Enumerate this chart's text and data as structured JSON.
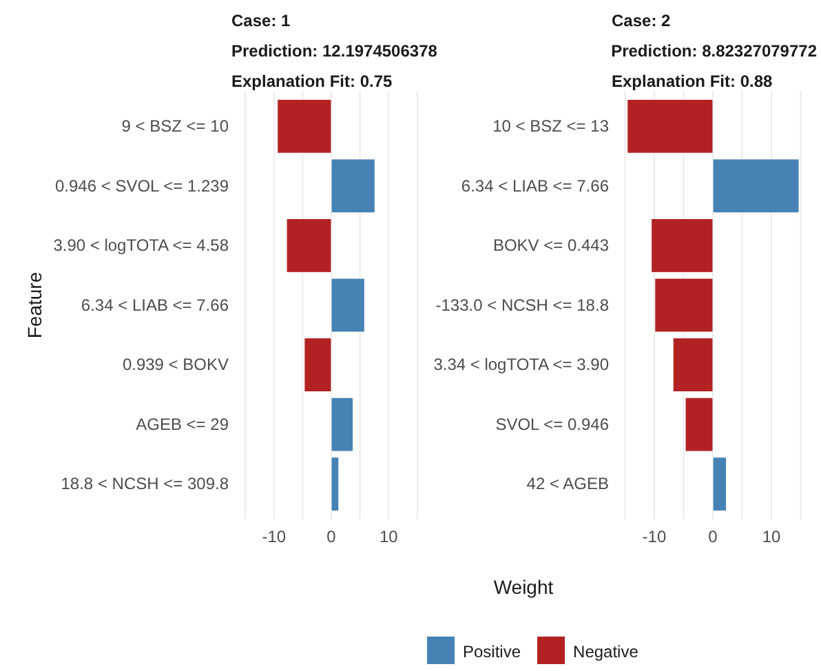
{
  "chart_data": [
    {
      "type": "bar",
      "orientation": "horizontal",
      "title": "Case: 1",
      "subtitle": "Prediction: 12.1974506378",
      "annotations": [
        "Explanation Fit: 0.75"
      ],
      "ylabel": "Feature",
      "xlabel": "Weight",
      "categories": [
        "9 < BSZ <= 10",
        "0.946 < SVOL <= 1.239",
        "3.90 < logTOTA <= 4.58",
        "6.34 < LIAB <= 7.66",
        "0.939 < BOKV",
        "AGEB <= 29",
        "18.8 < NCSH <= 309.8"
      ],
      "series": [
        {
          "name": "Positive",
          "color": "#4682b4",
          "values": [
            null,
            7.6,
            null,
            5.8,
            null,
            3.8,
            1.3
          ]
        },
        {
          "name": "Negative",
          "color": "#b22222",
          "values": [
            -9.4,
            null,
            -7.8,
            null,
            -4.7,
            null,
            null
          ]
        }
      ],
      "xlim": [
        -15.5,
        15.5
      ],
      "xticks": [
        {
          "value": -15,
          "label": null
        },
        -10,
        {
          "value": -5,
          "label": null
        },
        0,
        {
          "value": 5,
          "label": null
        },
        10,
        {
          "value": 15,
          "label": null
        }
      ],
      "grid": "x",
      "legend": "bottom"
    },
    {
      "type": "bar",
      "orientation": "horizontal",
      "title": "Case: 2",
      "subtitle": "Prediction: 8.82327079772",
      "annotations": [
        "Explanation Fit: 0.88"
      ],
      "categories": [
        "10 < BSZ <= 13",
        "6.34 < LIAB <= 7.66",
        "BOKV <= 0.443",
        "-133.0 < NCSH <= 18.8",
        "3.34 < logTOTA <= 3.90",
        "SVOL <= 0.946",
        "42 < AGEB"
      ],
      "series": [
        {
          "color": "#4682b4",
          "values": [
            null,
            14.7,
            null,
            null,
            null,
            null,
            2.3
          ]
        },
        {
          "color": "#b22222",
          "values": [
            -14.6,
            null,
            -10.5,
            -9.9,
            -6.8,
            -4.7,
            null
          ]
        }
      ],
      "xlim": [
        -15.4,
        15.4
      ],
      "xticks": [
        {
          "value": -15,
          "label": null
        },
        -10,
        {
          "value": -5,
          "label": null
        },
        0,
        {
          "value": 5,
          "label": null
        },
        10,
        {
          "value": 15,
          "label": null
        }
      ],
      "grid": "x"
    }
  ]
}
